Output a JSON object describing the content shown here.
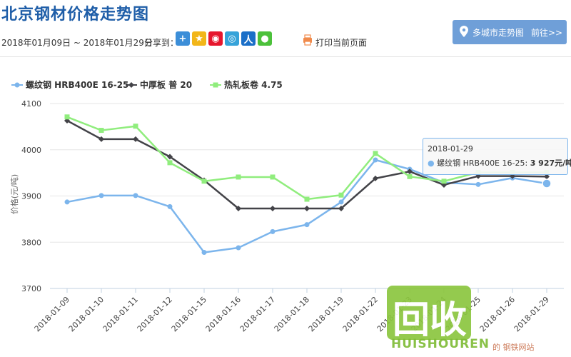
{
  "header": {
    "title": "北京钢材价格走势图",
    "date_range": "2018年01月09日 ~ 2018年01月29日",
    "share_label": "分享到：",
    "share_icons": [
      "plus-icon",
      "qzone-icon",
      "weibo-icon",
      "tencent-weibo-icon",
      "renren-icon",
      "wechat-icon"
    ],
    "print_label": "打印当前页面"
  },
  "city_trend": {
    "label": "多城市走势图",
    "go_label": "前往>>"
  },
  "tooltip": {
    "date": "2018-01-29",
    "series_name": "螺纹钢 HRB400E 16-25",
    "value_text": "3 927元/吨"
  },
  "watermark": {
    "logo_text": "回收",
    "brand": "HUISHOUREN",
    "site_text": "的 钢铁网站"
  },
  "colors": {
    "rebar": "#7cb5ec",
    "plate": "#434348",
    "coil": "#90ed7d",
    "title": "#1f5ea8",
    "accent": "#6f9fd8"
  },
  "chart_data": {
    "type": "line",
    "title": "",
    "xlabel": "",
    "ylabel": "价格(元/吨)",
    "ylim": [
      3700,
      4100
    ],
    "yticks": [
      3700,
      3800,
      3900,
      4000,
      4100
    ],
    "grid": "horizontal",
    "legend_position": "top-left",
    "categories": [
      "2018-01-09",
      "2018-01-10",
      "2018-01-11",
      "2018-01-12",
      "2018-01-15",
      "2018-01-16",
      "2018-01-17",
      "2018-01-18",
      "2018-01-19",
      "2018-01-22",
      "2018-01-23",
      "2018-01-24",
      "2018-01-25",
      "2018-01-26",
      "2018-01-29"
    ],
    "series": [
      {
        "name": "螺纹钢 HRB400E 16-25",
        "color": "#7cb5ec",
        "marker": "circle",
        "values": [
          3887,
          3901,
          3901,
          3877,
          3778,
          3788,
          3823,
          3838,
          3887,
          3978,
          3958,
          3929,
          3925,
          3939,
          3927
        ]
      },
      {
        "name": "中厚板 普 20",
        "color": "#434348",
        "marker": "diamond",
        "values": [
          4063,
          4023,
          4023,
          3985,
          3934,
          3873,
          3873,
          3873,
          3873,
          3938,
          3953,
          3924,
          3943,
          3943,
          3942
        ]
      },
      {
        "name": "热轧板卷 4.75",
        "color": "#90ed7d",
        "marker": "square",
        "values": [
          4071,
          4042,
          4051,
          3972,
          3932,
          3941,
          3941,
          3893,
          3902,
          3992,
          3942,
          3932,
          3951,
          3951,
          3951
        ]
      }
    ]
  }
}
